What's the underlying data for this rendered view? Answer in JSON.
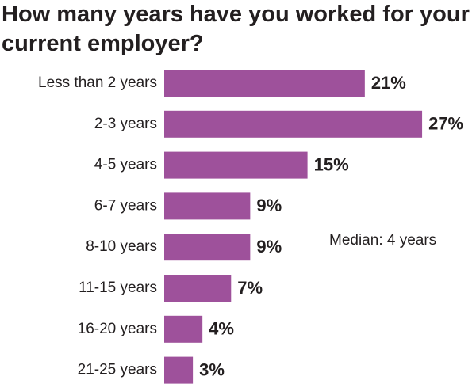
{
  "chart_data": {
    "type": "bar",
    "orientation": "horizontal",
    "title": "How many years have you worked for your current employer?",
    "categories": [
      "Less than 2 years",
      "2-3 years",
      "4-5 years",
      "6-7 years",
      "8-10 years",
      "11-15 years",
      "16-20 years",
      "21-25 years"
    ],
    "values": [
      21,
      27,
      15,
      9,
      9,
      7,
      4,
      3
    ],
    "value_labels": [
      "21%",
      "27%",
      "15%",
      "9%",
      "9%",
      "7%",
      "4%",
      "3%"
    ],
    "color": "#9e519b",
    "annotation": "Median: 4 years"
  }
}
